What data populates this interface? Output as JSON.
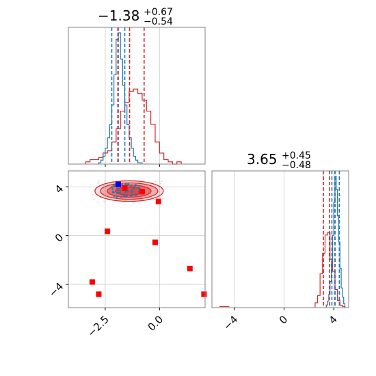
{
  "chart_data": {
    "type": "corner",
    "colors": {
      "red": "#d62728",
      "blue": "#1f77b4",
      "marker_red": "#ff0000",
      "marker_blue": "#0000ff",
      "grid": "#cccccc"
    },
    "grid": true,
    "param1": {
      "title": {
        "median": "−1.38",
        "plus": "+0.67",
        "minus": "−0.54"
      },
      "xlim": [
        -4.2,
        2.1
      ],
      "ticks": [
        -2.5,
        0.0
      ],
      "tick_labels": [
        "−2.5",
        "0.0"
      ],
      "red_quantiles": [
        -1.92,
        -1.38,
        -0.71
      ],
      "blue_quantiles": [
        -2.2,
        -1.9,
        -1.6
      ],
      "red_hist": {
        "bin_start": -3.4,
        "bin_width": 0.2,
        "counts": [
          1,
          2,
          2,
          3,
          5,
          6,
          10,
          16,
          24,
          28,
          33,
          34,
          32,
          29,
          24,
          18,
          10,
          5,
          2,
          1,
          0,
          1
        ]
      },
      "blue_hist": {
        "bin_start": -2.8,
        "bin_width": 0.1,
        "counts": [
          1,
          3,
          6,
          12,
          20,
          30,
          45,
          68,
          95,
          100,
          80,
          60,
          45,
          30,
          20,
          12,
          6,
          3,
          1,
          1
        ]
      }
    },
    "param2": {
      "title": {
        "median": "3.65",
        "plus": "+0.45",
        "minus": "−0.48"
      },
      "xlim": [
        -5.8,
        5.2
      ],
      "ticks": [
        -4,
        0,
        4
      ],
      "tick_labels": [
        "−4",
        "0",
        "4"
      ],
      "red_quantiles": [
        3.17,
        3.65,
        4.1
      ],
      "blue_quantiles": [
        3.85,
        4.1,
        4.45
      ],
      "red_hist": {
        "bin_start": 2.5,
        "bin_width": 0.2,
        "counts": [
          4,
          10,
          28,
          45,
          60,
          62,
          40,
          30,
          15,
          6,
          2,
          1
        ]
      },
      "blue_hist": {
        "bin_start": 3.4,
        "bin_width": 0.1,
        "counts": [
          2,
          5,
          10,
          20,
          35,
          55,
          80,
          100,
          90,
          70,
          50,
          30,
          15,
          8,
          3
        ]
      }
    },
    "joint": {
      "xlim": [
        -4.2,
        2.1
      ],
      "ylim": [
        -5.9,
        5.3
      ],
      "x_ticks": [
        -2.5,
        0.0
      ],
      "x_tick_labels": [
        "−2.5",
        "0.0"
      ],
      "y_ticks": [
        -4,
        0,
        4
      ],
      "y_tick_labels": [
        "−4",
        "0",
        "4"
      ],
      "red_markers": [
        [
          -2.4,
          0.35
        ],
        [
          -1.6,
          3.9
        ],
        [
          -0.8,
          3.6
        ],
        [
          -0.05,
          2.8
        ],
        [
          -0.2,
          -0.55
        ],
        [
          1.4,
          -2.7
        ],
        [
          2.05,
          -4.8
        ],
        [
          -3.1,
          -3.8
        ],
        [
          -2.8,
          -4.8
        ]
      ],
      "blue_markers": [
        [
          -1.9,
          4.2
        ]
      ]
    }
  }
}
